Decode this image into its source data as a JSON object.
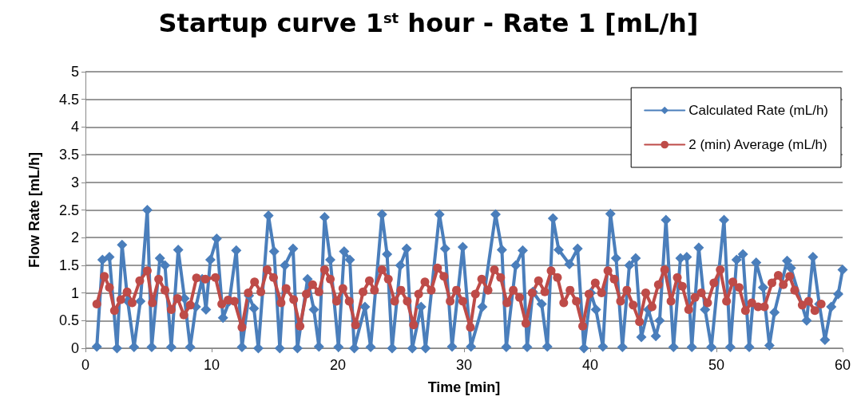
{
  "chart_data": {
    "type": "line",
    "title": "Startup curve 1$^{st}$ hour - Rate 1 [mL/h]",
    "xlabel": "Time [min]",
    "ylabel": "Flow Rate [mL/h]",
    "xlim": [
      0,
      60
    ],
    "xticks": [
      0,
      10,
      20,
      30,
      40,
      50,
      60
    ],
    "ylim": [
      0,
      5
    ],
    "yticks": [
      0,
      0.5,
      1,
      1.5,
      2,
      2.5,
      3,
      3.5,
      4,
      4.5,
      5
    ],
    "grid": "y",
    "legend": "top right",
    "line_style": "solid",
    "series": [
      {
        "name": "Calculated Rate (mL/h)",
        "color": "#4a7ebb",
        "marker": "diamond",
        "x": [
          0.9,
          1.35,
          1.9,
          2.5,
          2.9,
          3.35,
          3.85,
          4.35,
          4.9,
          5.25,
          5.9,
          6.3,
          6.8,
          7.35,
          7.85,
          8.3,
          8.75,
          9.25,
          9.55,
          9.9,
          10.4,
          10.9,
          11.4,
          11.95,
          12.4,
          12.95,
          13.35,
          13.7,
          14.5,
          14.95,
          15.4,
          15.8,
          16.45,
          16.8,
          17.6,
          18.1,
          18.5,
          18.95,
          19.4,
          20.05,
          20.5,
          20.95,
          21.3,
          22.15,
          22.6,
          23.5,
          23.9,
          24.3,
          24.95,
          25.45,
          25.9,
          26.6,
          26.95,
          28.05,
          28.5,
          29.05,
          29.9,
          30.55,
          31.45,
          32.5,
          33.0,
          33.35,
          34.1,
          34.65,
          35.0,
          35.45,
          36.15,
          36.6,
          37.05,
          37.5,
          38.35,
          39.0,
          39.5,
          40.05,
          40.45,
          41.0,
          41.6,
          42.05,
          42.55,
          43.1,
          43.6,
          44.05,
          44.6,
          45.2,
          45.5,
          46.0,
          46.6,
          47.15,
          47.65,
          48.05,
          48.6,
          49.1,
          49.6,
          50.6,
          51.1,
          51.6,
          52.1,
          52.6,
          53.15,
          53.7,
          54.2,
          54.6,
          55.6,
          55.9,
          57.15,
          57.65,
          58.15,
          58.6,
          59.1,
          59.65,
          60
        ],
        "values": [
          0.03,
          1.6,
          1.65,
          0,
          1.87,
          0.85,
          0.02,
          0.85,
          2.5,
          0.02,
          1.63,
          1.5,
          0.02,
          1.78,
          0.9,
          0.02,
          0.75,
          1.25,
          0.7,
          1.6,
          1.98,
          0.55,
          0.85,
          1.77,
          0.02,
          0.95,
          0.72,
          0,
          2.4,
          1.75,
          0,
          1.5,
          1.8,
          0,
          1.25,
          0.7,
          0.03,
          2.37,
          1.6,
          0.02,
          1.75,
          1.6,
          0,
          0.75,
          0.02,
          2.42,
          1.7,
          0,
          1.5,
          1.8,
          0,
          0.75,
          0,
          2.42,
          1.8,
          0.03,
          1.83,
          0.03,
          0.75,
          2.42,
          1.78,
          0.02,
          1.5,
          1.77,
          0.02,
          1.02,
          0.8,
          0.03,
          2.35,
          1.78,
          1.52,
          1.8,
          0,
          1.0,
          0.7,
          0.03,
          2.43,
          1.63,
          0.02,
          1.5,
          1.63,
          0.2,
          0.7,
          0.22,
          0.5,
          2.32,
          0.02,
          1.63,
          1.65,
          0.02,
          1.82,
          0.7,
          0.02,
          2.32,
          0.02,
          1.6,
          1.7,
          0.02,
          1.55,
          1.1,
          0.05,
          0.65,
          1.58,
          1.45,
          0.5,
          1.65,
          0.8,
          0.15,
          0.75,
          0.98,
          1.42
        ]
      },
      {
        "name": "2 (min) Average (mL/h)",
        "color": "#be4b48",
        "marker": "circle",
        "x": [
          0.9,
          1.5,
          1.9,
          2.3,
          2.8,
          3.3,
          3.7,
          4.3,
          4.9,
          5.3,
          5.8,
          6.3,
          6.8,
          7.3,
          7.8,
          8.3,
          8.8,
          9.5,
          10.3,
          10.8,
          11.3,
          11.8,
          12.4,
          12.9,
          13.4,
          13.9,
          14.4,
          14.9,
          15.5,
          15.9,
          16.5,
          17.0,
          17.5,
          18.0,
          18.5,
          18.95,
          19.4,
          19.9,
          20.4,
          20.9,
          21.4,
          22.0,
          22.5,
          22.9,
          23.5,
          24.0,
          24.5,
          25.0,
          25.5,
          26.0,
          26.4,
          26.9,
          27.4,
          27.9,
          28.4,
          28.9,
          29.4,
          29.9,
          30.5,
          30.9,
          31.4,
          31.9,
          32.4,
          32.9,
          33.4,
          33.9,
          34.4,
          34.9,
          35.4,
          35.9,
          36.4,
          36.9,
          37.4,
          37.9,
          38.4,
          38.9,
          39.4,
          39.9,
          40.4,
          40.9,
          41.4,
          41.9,
          42.4,
          42.9,
          43.4,
          43.9,
          44.4,
          44.9,
          45.4,
          45.9,
          46.4,
          46.9,
          47.3,
          47.8,
          48.3,
          48.8,
          49.3,
          49.8,
          50.3,
          50.8,
          51.3,
          51.8,
          52.3,
          52.8,
          53.3,
          53.8,
          54.4,
          54.9,
          55.3,
          55.8,
          56.2,
          56.8,
          57.3,
          57.8,
          58.3
        ],
        "values": [
          0.8,
          1.3,
          1.1,
          0.68,
          0.88,
          1.02,
          0.82,
          1.22,
          1.4,
          0.82,
          1.25,
          1.05,
          0.7,
          0.9,
          0.6,
          0.78,
          1.27,
          1.25,
          1.28,
          0.8,
          0.87,
          0.85,
          0.38,
          1.0,
          1.2,
          1.02,
          1.42,
          1.28,
          0.82,
          1.08,
          0.88,
          0.4,
          0.98,
          1.15,
          1.02,
          1.42,
          1.25,
          0.85,
          1.08,
          0.85,
          0.42,
          1.02,
          1.22,
          1.05,
          1.42,
          1.25,
          0.85,
          1.05,
          0.85,
          0.42,
          0.98,
          1.2,
          1.05,
          1.45,
          1.3,
          0.85,
          1.05,
          0.85,
          0.38,
          0.98,
          1.25,
          1.05,
          1.42,
          1.28,
          0.82,
          1.05,
          0.92,
          0.45,
          1.0,
          1.22,
          1.02,
          1.4,
          1.28,
          0.82,
          1.05,
          0.85,
          0.4,
          0.98,
          1.18,
          1.0,
          1.4,
          1.25,
          0.85,
          1.05,
          0.78,
          0.48,
          1.0,
          0.75,
          1.15,
          1.42,
          0.85,
          1.28,
          1.12,
          0.7,
          0.92,
          1.0,
          0.82,
          1.18,
          1.42,
          0.85,
          1.2,
          1.1,
          0.68,
          0.82,
          0.75,
          0.75,
          1.18,
          1.32,
          1.15,
          1.3,
          1.05,
          0.78,
          0.85,
          0.68,
          0.8
        ]
      }
    ]
  }
}
